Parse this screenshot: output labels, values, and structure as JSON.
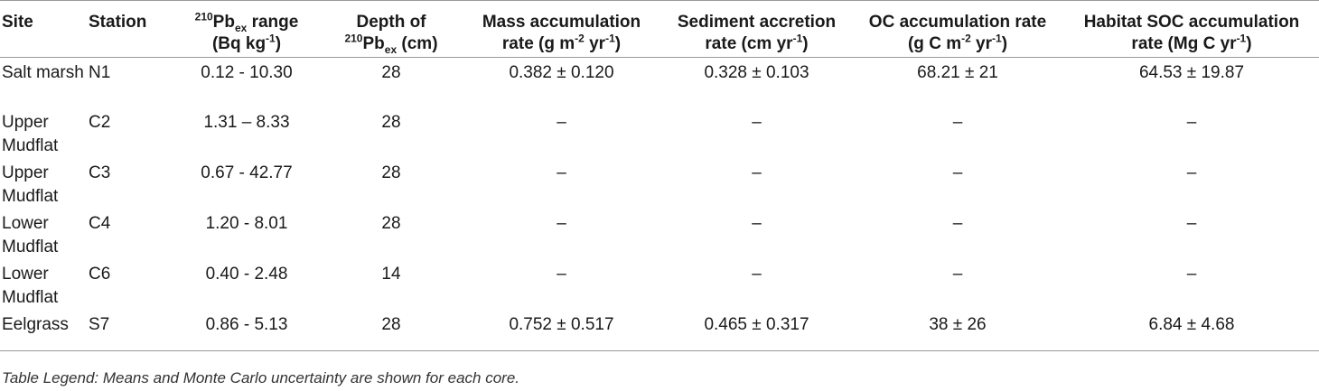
{
  "columns": {
    "site": "Site",
    "station": "Station",
    "range_l1_sup": "210",
    "range_l1_base": "Pb",
    "range_l1_sub": "ex",
    "range_l1_rest": " range",
    "range_l2_pre": "(Bq kg",
    "range_l2_sup": "-1",
    "range_l2_post": ")",
    "depth_l1": "Depth of",
    "depth_l2_sup": "210",
    "depth_l2_base": "Pb",
    "depth_l2_sub": "ex",
    "depth_l2_rest": " (cm)",
    "mass_l1": "Mass accumulation",
    "mass_l2_pre": "rate (g m",
    "mass_l2_sup1": "-2",
    "mass_l2_mid": " yr",
    "mass_l2_sup2": "-1",
    "mass_l2_post": ")",
    "sed_l1": "Sediment accretion",
    "sed_l2_pre": "rate (cm yr",
    "sed_l2_sup": "-1",
    "sed_l2_post": ")",
    "oc_l1": "OC accumulation rate",
    "oc_l2_pre": "(g C m",
    "oc_l2_sup1": "-2",
    "oc_l2_mid": " yr",
    "oc_l2_sup2": "-1",
    "oc_l2_post": ")",
    "hab_l1": "Habitat SOC accumulation",
    "hab_l2_pre": "rate (Mg C yr",
    "hab_l2_sup": "-1",
    "hab_l2_post": ")"
  },
  "rows": [
    {
      "site": "Salt marsh",
      "station": "N1",
      "range": "0.12 - 10.30",
      "depth": "28",
      "mass": "0.382 ± 0.120",
      "sed": "0.328 ± 0.103",
      "oc": "68.21 ± 21",
      "hab": "64.53 ± 19.87"
    },
    {
      "site": "Upper Mudflat",
      "station": "C2",
      "range": "1.31 – 8.33",
      "depth": "28",
      "mass": "–",
      "sed": "–",
      "oc": "–",
      "hab": "–"
    },
    {
      "site": "Upper Mudflat",
      "station": "C3",
      "range": "0.67 - 42.77",
      "depth": "28",
      "mass": "–",
      "sed": "–",
      "oc": "–",
      "hab": "–"
    },
    {
      "site": "Lower Mudflat",
      "station": "C4",
      "range": "1.20 - 8.01",
      "depth": "28",
      "mass": "–",
      "sed": "–",
      "oc": "–",
      "hab": "–"
    },
    {
      "site": "Lower Mudflat",
      "station": "C6",
      "range": "0.40 - 2.48",
      "depth": "14",
      "mass": "–",
      "sed": "–",
      "oc": "–",
      "hab": "–"
    },
    {
      "site": "Eelgrass",
      "station": "S7",
      "range": "0.86 - 5.13",
      "depth": "28",
      "mass": "0.752 ± 0.517",
      "sed": "0.465 ± 0.317",
      "oc": "38 ± 26",
      "hab": "6.84 ± 4.68"
    }
  ],
  "legend": "Table Legend: Means and Monte Carlo uncertainty are shown for each core."
}
